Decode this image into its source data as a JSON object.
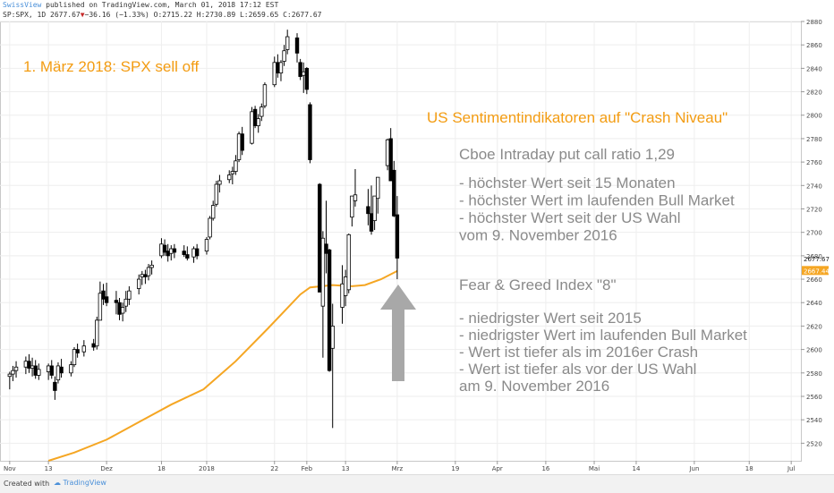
{
  "header": {
    "publisher": "SwissView",
    "published_text": " published on TradingView.com, March 01, 2018 17:12 EST",
    "symbol": "SP:SPX, 1D",
    "last": "2677.67",
    "down_arrow": "▼",
    "change": "−36.16 (−1.33%)",
    "ohlc": "O:2715.22 H:2730.89 L:2659.65 C:2677.67"
  },
  "footer": {
    "created_with": "Created with",
    "brand": "TradingView"
  },
  "colors": {
    "up": "#ffffff",
    "down": "#000000",
    "ma": "#f5a623",
    "annotation_orange": "#f39c12",
    "annotation_gray": "#8a8a8a",
    "arrow": "#a8a8a8"
  },
  "annotations": {
    "title": "1. März 2018: SPX sell off",
    "sentiment_heading": "US Sentimentindikatoren auf \"Crash Niveau\"",
    "cboe_heading": "Cboe Intraday put call ratio 1,29",
    "cboe_points": [
      "- höchster Wert seit 15 Monaten",
      "- höchster Wert im laufenden Bull Market",
      "- höchster Wert seit der US Wahl",
      "   vom 9. November 2016"
    ],
    "fear_heading": "Fear & Greed Index \"8\"",
    "fear_points": [
      "- niedrigster Wert seit 2015",
      "- niedrigster Wert im laufenden Bull Market",
      "- Wert ist tiefer als im 2016er Crash",
      "- Wert ist tiefer als vor der US Wahl",
      "   am 9. November 2016"
    ],
    "arrow_icon": "up-arrow-icon"
  },
  "chart_data": {
    "type": "candlestick",
    "ylim": [
      2505,
      2880
    ],
    "y_ticks": [
      2520,
      2540,
      2560,
      2580,
      2600,
      2620,
      2640,
      2660,
      2680,
      2700,
      2720,
      2740,
      2760,
      2780,
      2800,
      2820,
      2840,
      2860,
      2880
    ],
    "price_labels": [
      {
        "value": 2677.67,
        "text": "2677.67",
        "style": "plain"
      },
      {
        "value": 2667.44,
        "text": "2667.44",
        "style": "ma"
      }
    ],
    "x_ticks": [
      {
        "label": "Nov",
        "day": 0
      },
      {
        "label": "13",
        "day": 12
      },
      {
        "label": "Dez",
        "day": 30
      },
      {
        "label": "18",
        "day": 47
      },
      {
        "label": "2018",
        "day": 61
      },
      {
        "label": "22",
        "day": 82
      },
      {
        "label": "Feb",
        "day": 92
      },
      {
        "label": "13",
        "day": 104
      },
      {
        "label": "Mrz",
        "day": 120
      },
      {
        "label": "19",
        "day": 138
      },
      {
        "label": "Apr",
        "day": 151
      },
      {
        "label": "16",
        "day": 166
      },
      {
        "label": "Mai",
        "day": 181
      },
      {
        "label": "14",
        "day": 194
      },
      {
        "label": "Jun",
        "day": 212
      },
      {
        "label": "18",
        "day": 229
      },
      {
        "label": "Jul",
        "day": 242
      }
    ],
    "x_range_days": [
      -3,
      245
    ],
    "candles": [
      {
        "d": 0,
        "o": 2577,
        "h": 2581,
        "l": 2566,
        "c": 2579
      },
      {
        "d": 1,
        "o": 2579,
        "h": 2586,
        "l": 2573,
        "c": 2582
      },
      {
        "d": 2,
        "o": 2582,
        "h": 2590,
        "l": 2576,
        "c": 2585
      },
      {
        "d": 5,
        "o": 2585,
        "h": 2594,
        "l": 2579,
        "c": 2590
      },
      {
        "d": 6,
        "o": 2590,
        "h": 2596,
        "l": 2580,
        "c": 2584
      },
      {
        "d": 7,
        "o": 2584,
        "h": 2593,
        "l": 2577,
        "c": 2586
      },
      {
        "d": 8,
        "o": 2586,
        "h": 2591,
        "l": 2575,
        "c": 2578
      },
      {
        "d": 9,
        "o": 2578,
        "h": 2588,
        "l": 2574,
        "c": 2583
      },
      {
        "d": 12,
        "o": 2581,
        "h": 2588,
        "l": 2574,
        "c": 2586
      },
      {
        "d": 13,
        "o": 2586,
        "h": 2591,
        "l": 2575,
        "c": 2578
      },
      {
        "d": 14,
        "o": 2572,
        "h": 2577,
        "l": 2557,
        "c": 2565
      },
      {
        "d": 15,
        "o": 2574,
        "h": 2589,
        "l": 2571,
        "c": 2586
      },
      {
        "d": 16,
        "o": 2585,
        "h": 2592,
        "l": 2576,
        "c": 2580
      },
      {
        "d": 19,
        "o": 2580,
        "h": 2590,
        "l": 2577,
        "c": 2587
      },
      {
        "d": 20,
        "o": 2587,
        "h": 2602,
        "l": 2585,
        "c": 2600
      },
      {
        "d": 21,
        "o": 2600,
        "h": 2605,
        "l": 2593,
        "c": 2597
      },
      {
        "d": 23,
        "o": 2598,
        "h": 2608,
        "l": 2594,
        "c": 2603
      },
      {
        "d": 26,
        "o": 2605,
        "h": 2609,
        "l": 2599,
        "c": 2602
      },
      {
        "d": 27,
        "o": 2603,
        "h": 2628,
        "l": 2600,
        "c": 2625
      },
      {
        "d": 28,
        "o": 2625,
        "h": 2658,
        "l": 2625,
        "c": 2648
      },
      {
        "d": 29,
        "o": 2650,
        "h": 2656,
        "l": 2638,
        "c": 2643
      },
      {
        "d": 30,
        "o": 2645,
        "h": 2657,
        "l": 2637,
        "c": 2640
      },
      {
        "d": 33,
        "o": 2642,
        "h": 2650,
        "l": 2630,
        "c": 2640
      },
      {
        "d": 34,
        "o": 2640,
        "h": 2644,
        "l": 2625,
        "c": 2630
      },
      {
        "d": 35,
        "o": 2631,
        "h": 2640,
        "l": 2624,
        "c": 2636
      },
      {
        "d": 36,
        "o": 2637,
        "h": 2650,
        "l": 2632,
        "c": 2643
      },
      {
        "d": 37,
        "o": 2643,
        "h": 2654,
        "l": 2638,
        "c": 2650
      },
      {
        "d": 40,
        "o": 2652,
        "h": 2664,
        "l": 2647,
        "c": 2660
      },
      {
        "d": 41,
        "o": 2662,
        "h": 2667,
        "l": 2655,
        "c": 2664
      },
      {
        "d": 42,
        "o": 2664,
        "h": 2668,
        "l": 2656,
        "c": 2662
      },
      {
        "d": 43,
        "o": 2663,
        "h": 2673,
        "l": 2659,
        "c": 2670
      },
      {
        "d": 44,
        "o": 2670,
        "h": 2676,
        "l": 2664,
        "c": 2672
      },
      {
        "d": 47,
        "o": 2680,
        "h": 2695,
        "l": 2678,
        "c": 2690
      },
      {
        "d": 48,
        "o": 2689,
        "h": 2694,
        "l": 2680,
        "c": 2683
      },
      {
        "d": 49,
        "o": 2684,
        "h": 2690,
        "l": 2675,
        "c": 2680
      },
      {
        "d": 50,
        "o": 2682,
        "h": 2689,
        "l": 2676,
        "c": 2686
      },
      {
        "d": 51,
        "o": 2686,
        "h": 2690,
        "l": 2678,
        "c": 2683
      },
      {
        "d": 54,
        "o": 2684,
        "h": 2689,
        "l": 2679,
        "c": 2681
      },
      {
        "d": 55,
        "o": 2681,
        "h": 2688,
        "l": 2676,
        "c": 2678
      },
      {
        "d": 57,
        "o": 2679,
        "h": 2688,
        "l": 2674,
        "c": 2686
      },
      {
        "d": 58,
        "o": 2686,
        "h": 2690,
        "l": 2677,
        "c": 2680
      },
      {
        "d": 61,
        "o": 2684,
        "h": 2696,
        "l": 2681,
        "c": 2694
      },
      {
        "d": 62,
        "o": 2696,
        "h": 2714,
        "l": 2694,
        "c": 2712
      },
      {
        "d": 63,
        "o": 2712,
        "h": 2727,
        "l": 2710,
        "c": 2723
      },
      {
        "d": 64,
        "o": 2724,
        "h": 2744,
        "l": 2722,
        "c": 2741
      },
      {
        "d": 65,
        "o": 2741,
        "h": 2749,
        "l": 2734,
        "c": 2744
      },
      {
        "d": 68,
        "o": 2745,
        "h": 2753,
        "l": 2742,
        "c": 2749
      },
      {
        "d": 69,
        "o": 2750,
        "h": 2756,
        "l": 2741,
        "c": 2752
      },
      {
        "d": 70,
        "o": 2752,
        "h": 2766,
        "l": 2749,
        "c": 2761
      },
      {
        "d": 71,
        "o": 2762,
        "h": 2786,
        "l": 2760,
        "c": 2784
      },
      {
        "d": 72,
        "o": 2784,
        "h": 2790,
        "l": 2766,
        "c": 2770
      },
      {
        "d": 75,
        "o": 2776,
        "h": 2807,
        "l": 2775,
        "c": 2803
      },
      {
        "d": 76,
        "o": 2805,
        "h": 2808,
        "l": 2789,
        "c": 2791
      },
      {
        "d": 77,
        "o": 2791,
        "h": 2801,
        "l": 2785,
        "c": 2797
      },
      {
        "d": 78,
        "o": 2799,
        "h": 2810,
        "l": 2795,
        "c": 2807
      },
      {
        "d": 79,
        "o": 2808,
        "h": 2828,
        "l": 2806,
        "c": 2826
      },
      {
        "d": 82,
        "o": 2826,
        "h": 2850,
        "l": 2824,
        "c": 2845
      },
      {
        "d": 83,
        "o": 2845,
        "h": 2852,
        "l": 2832,
        "c": 2836
      },
      {
        "d": 84,
        "o": 2836,
        "h": 2847,
        "l": 2829,
        "c": 2845
      },
      {
        "d": 85,
        "o": 2846,
        "h": 2860,
        "l": 2842,
        "c": 2855
      },
      {
        "d": 86,
        "o": 2856,
        "h": 2873,
        "l": 2852,
        "c": 2867
      },
      {
        "d": 89,
        "o": 2866,
        "h": 2870,
        "l": 2845,
        "c": 2853
      },
      {
        "d": 90,
        "o": 2845,
        "h": 2848,
        "l": 2830,
        "c": 2833
      },
      {
        "d": 91,
        "o": 2834,
        "h": 2845,
        "l": 2819,
        "c": 2837
      },
      {
        "d": 92,
        "o": 2840,
        "h": 2841,
        "l": 2818,
        "c": 2822
      },
      {
        "d": 93,
        "o": 2809,
        "h": 2811,
        "l": 2759,
        "c": 2762
      },
      {
        "d": 96,
        "o": 2741,
        "h": 2742,
        "l": 2649,
        "c": 2649
      },
      {
        "d": 97,
        "o": 2637,
        "h": 2701,
        "l": 2593,
        "c": 2695
      },
      {
        "d": 98,
        "o": 2690,
        "h": 2727,
        "l": 2665,
        "c": 2682
      },
      {
        "d": 99,
        "o": 2685,
        "h": 2686,
        "l": 2581,
        "c": 2582
      },
      {
        "d": 100,
        "o": 2601,
        "h": 2639,
        "l": 2533,
        "c": 2620
      },
      {
        "d": 103,
        "o": 2636,
        "h": 2672,
        "l": 2622,
        "c": 2656
      },
      {
        "d": 104,
        "o": 2646,
        "h": 2668,
        "l": 2637,
        "c": 2662
      },
      {
        "d": 105,
        "o": 2651,
        "h": 2699,
        "l": 2648,
        "c": 2698
      },
      {
        "d": 106,
        "o": 2713,
        "h": 2731,
        "l": 2705,
        "c": 2731
      },
      {
        "d": 107,
        "o": 2727,
        "h": 2754,
        "l": 2722,
        "c": 2732
      },
      {
        "d": 111,
        "o": 2722,
        "h": 2737,
        "l": 2706,
        "c": 2716
      },
      {
        "d": 112,
        "o": 2716,
        "h": 2740,
        "l": 2698,
        "c": 2701
      },
      {
        "d": 113,
        "o": 2710,
        "h": 2731,
        "l": 2702,
        "c": 2731
      },
      {
        "d": 114,
        "o": 2729,
        "h": 2747,
        "l": 2716,
        "c": 2747
      },
      {
        "d": 117,
        "o": 2757,
        "h": 2780,
        "l": 2753,
        "c": 2779
      },
      {
        "d": 118,
        "o": 2780,
        "h": 2789,
        "l": 2744,
        "c": 2744
      },
      {
        "d": 119,
        "o": 2753,
        "h": 2761,
        "l": 2713,
        "c": 2714
      },
      {
        "d": 120,
        "o": 2715,
        "h": 2731,
        "l": 2660,
        "c": 2678
      }
    ],
    "moving_average": [
      {
        "d": 12,
        "v": 2505
      },
      {
        "d": 20,
        "v": 2512
      },
      {
        "d": 30,
        "v": 2523
      },
      {
        "d": 40,
        "v": 2538
      },
      {
        "d": 50,
        "v": 2553
      },
      {
        "d": 60,
        "v": 2566
      },
      {
        "d": 70,
        "v": 2590
      },
      {
        "d": 80,
        "v": 2618
      },
      {
        "d": 90,
        "v": 2647
      },
      {
        "d": 93,
        "v": 2653
      },
      {
        "d": 100,
        "v": 2655
      },
      {
        "d": 106,
        "v": 2654
      },
      {
        "d": 110,
        "v": 2655
      },
      {
        "d": 115,
        "v": 2660
      },
      {
        "d": 120,
        "v": 2667
      }
    ]
  }
}
